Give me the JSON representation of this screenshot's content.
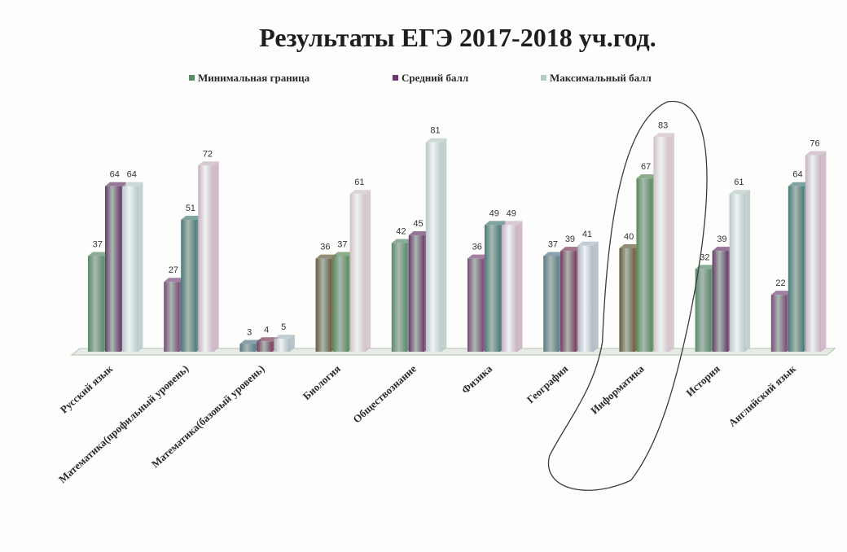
{
  "chart_data": {
    "type": "bar",
    "title": "Результаты ЕГЭ 2017-2018 уч.год.",
    "categories": [
      "Русский язык",
      "Математика(профильный уровень)",
      "Математика(базовый уровень)",
      "Биология",
      "Обществознание",
      "Физика",
      "География",
      "Информатика",
      "История",
      "Английский язык"
    ],
    "series": [
      {
        "name": "Минимальная граница",
        "values": [
          37,
          27,
          3,
          36,
          42,
          36,
          37,
          40,
          32,
          22
        ]
      },
      {
        "name": "Средний балл",
        "values": [
          64,
          51,
          4,
          37,
          45,
          49,
          39,
          67,
          39,
          64
        ]
      },
      {
        "name": "Максимальный балл",
        "values": [
          64,
          72,
          5,
          61,
          81,
          49,
          41,
          83,
          61,
          76
        ]
      }
    ],
    "ylim": [
      0,
      85
    ],
    "xlabel": "",
    "ylabel": "",
    "grid": false,
    "legend_position": "top",
    "bar_style": "3d-cylinder",
    "highlighted_category": "Информатика",
    "colors": {
      "Минимальная граница": [
        "#5a8a6a",
        "#7a4a7a",
        "#5a7a8a",
        "#6a5a3a"
      ],
      "Средний балл": [
        "#6a3a6a",
        "#4a7a7a",
        "#7a3a5a",
        "#5a8a5a"
      ],
      "Максимальный балл": [
        "#b8c8c8",
        "#c8b0c0",
        "#aab8c0",
        "#d0c0c8"
      ]
    }
  }
}
